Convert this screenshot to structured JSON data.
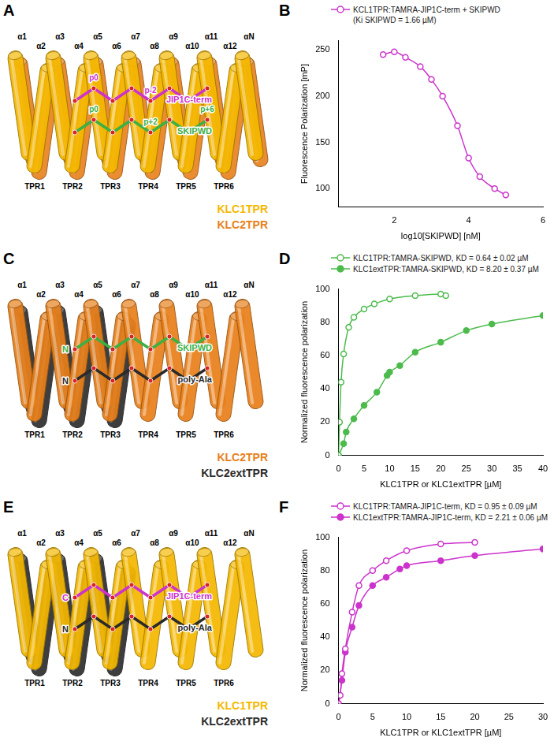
{
  "chart_data": [
    {
      "panel": "B",
      "type": "scatter",
      "x_label": "log10[SKIPWD] [nM]",
      "y_label": "Fluorescence Polarization [mP]",
      "xlim": [
        0.5,
        6
      ],
      "xticks": [
        2,
        4,
        6
      ],
      "ylim": [
        80,
        260
      ],
      "yticks": [
        100,
        150,
        200,
        250
      ],
      "grid": false,
      "legend": "top",
      "annotations": [
        "(Ki SKIPWD = 1.66 µM)"
      ],
      "series": [
        {
          "name": "KCL1TPR:TAMRA-JIP1C-term + SKIPWD",
          "color": "#cc33cc",
          "marker": "circle_open",
          "line_style": "solid",
          "x": [
            1.7,
            2.0,
            2.3,
            2.7,
            3.0,
            3.3,
            3.7,
            4.0,
            4.3,
            4.7,
            5.0
          ],
          "values": [
            245,
            248,
            242,
            232,
            218,
            200,
            168,
            133,
            113,
            100,
            93
          ]
        }
      ]
    },
    {
      "panel": "D",
      "type": "scatter",
      "x_label": "KLC1TPR or KLC1extTPR [µM]",
      "y_label": "Normalized fluorescence polarization",
      "xlim": [
        0,
        40
      ],
      "xticks": [
        0,
        5,
        10,
        15,
        20,
        25,
        30,
        35,
        40
      ],
      "ylim": [
        0,
        100
      ],
      "yticks": [
        0,
        20,
        40,
        60,
        80,
        100
      ],
      "grid": false,
      "legend": "top",
      "series": [
        {
          "name": "KLC1TPR:TAMRA-SKIPWD, KD = 0.64 ± 0.02 µM",
          "color": "#4cbb4c",
          "marker": "circle_open",
          "line_style": "solid",
          "x": [
            0,
            0.2,
            0.5,
            1,
            2,
            3,
            5,
            7,
            10,
            15,
            20,
            21
          ],
          "values": [
            0,
            20,
            44,
            61,
            77,
            83,
            88,
            91,
            94,
            96,
            97,
            96
          ]
        },
        {
          "name": "KLC1extTPR:TAMRA-SKIPWD, KD = 8.20 ± 0.37 µM",
          "color": "#4cbb4c",
          "marker": "circle",
          "line_style": "solid",
          "x": [
            0,
            1,
            1.5,
            3,
            5,
            7.5,
            9.5,
            10,
            12,
            15,
            20,
            25,
            30,
            40
          ],
          "values": [
            0,
            7,
            14,
            22,
            30,
            38,
            48,
            50,
            54,
            62,
            68,
            75,
            79,
            84
          ]
        }
      ]
    },
    {
      "panel": "F",
      "type": "scatter",
      "x_label": "KLC1TPR or KLC1extTPR [µM]",
      "y_label": "Normalized fluorescence polarization",
      "xlim": [
        0,
        30
      ],
      "xticks": [
        0,
        5,
        10,
        15,
        20,
        25,
        30
      ],
      "ylim": [
        0,
        100
      ],
      "yticks": [
        0,
        20,
        40,
        60,
        80,
        100
      ],
      "grid": false,
      "legend": "top",
      "series": [
        {
          "name": "KLC1TPR:TAMRA-JIP1C-term, KD = 0.95 ± 0.09 µM",
          "color": "#cc33cc",
          "marker": "circle_open",
          "line_style": "solid",
          "x": [
            0,
            0.25,
            0.5,
            1,
            2,
            3,
            5,
            7,
            10,
            15,
            20
          ],
          "values": [
            0,
            5,
            18,
            33,
            55,
            71,
            80,
            86,
            92,
            96,
            97
          ]
        },
        {
          "name": "KLC1extTPR:TAMRA-JIP1C-term, KD = 2.21 ± 0.06 µM",
          "color": "#cc33cc",
          "marker": "circle",
          "line_style": "solid",
          "x": [
            0,
            0.5,
            1,
            2,
            3,
            5,
            7,
            9,
            10,
            15,
            20,
            30
          ],
          "values": [
            0,
            14,
            31,
            46,
            59,
            71,
            76,
            81,
            83,
            86,
            89,
            93
          ]
        }
      ]
    }
  ],
  "diagrams": [
    {
      "panel": "A",
      "repeats": [
        "TPR1",
        "TPR2",
        "TPR3",
        "TPR4",
        "TPR5",
        "TPR6"
      ],
      "helices": [
        "α1",
        "α2",
        "α3",
        "α4",
        "α5",
        "α6",
        "α7",
        "α8",
        "α9",
        "α10",
        "α11",
        "α12",
        "αN"
      ],
      "proteins": [
        {
          "name": "KLC1TPR",
          "color": "#f5b800"
        },
        {
          "name": "KLC2TPR",
          "color": "#e8801a"
        }
      ],
      "peptides": [
        {
          "name": "JIP1C-term",
          "color": "#cc33cc",
          "positions": [
            "p0",
            "p-2"
          ]
        },
        {
          "name": "SKIPWD",
          "color": "#3cb043",
          "positions": [
            "p0",
            "p+2",
            "p+6"
          ]
        }
      ]
    },
    {
      "panel": "C",
      "repeats": [
        "TPR1",
        "TPR2",
        "TPR3",
        "TPR4",
        "TPR5",
        "TPR6"
      ],
      "helices": [
        "α1",
        "α2",
        "α3",
        "α4",
        "α5",
        "α6",
        "α7",
        "α8",
        "α9",
        "α10",
        "α11",
        "α12",
        "αN"
      ],
      "proteins": [
        {
          "name": "KLC2TPR",
          "color": "#e8801a"
        },
        {
          "name": "KLC2extTPR",
          "color": "#2a2a2a"
        }
      ],
      "peptides": [
        {
          "name": "SKIPWD",
          "color": "#3cb043",
          "terminus": "N"
        },
        {
          "name": "poly-Ala",
          "color": "#2a2a2a",
          "terminus": "N"
        }
      ]
    },
    {
      "panel": "E",
      "repeats": [
        "TPR1",
        "TPR2",
        "TPR3",
        "TPR4",
        "TPR5",
        "TPR6"
      ],
      "helices": [
        "α1",
        "α2",
        "α3",
        "α4",
        "α5",
        "α6",
        "α7",
        "α8",
        "α9",
        "α10",
        "α11",
        "α12",
        "αN"
      ],
      "proteins": [
        {
          "name": "KLC1TPR",
          "color": "#f5b800"
        },
        {
          "name": "KLC2extTPR",
          "color": "#2a2a2a"
        }
      ],
      "peptides": [
        {
          "name": "JIP1C-term",
          "color": "#cc33cc",
          "terminus": "C"
        },
        {
          "name": "poly-Ala",
          "color": "#2a2a2a",
          "terminus": "N"
        }
      ]
    }
  ]
}
